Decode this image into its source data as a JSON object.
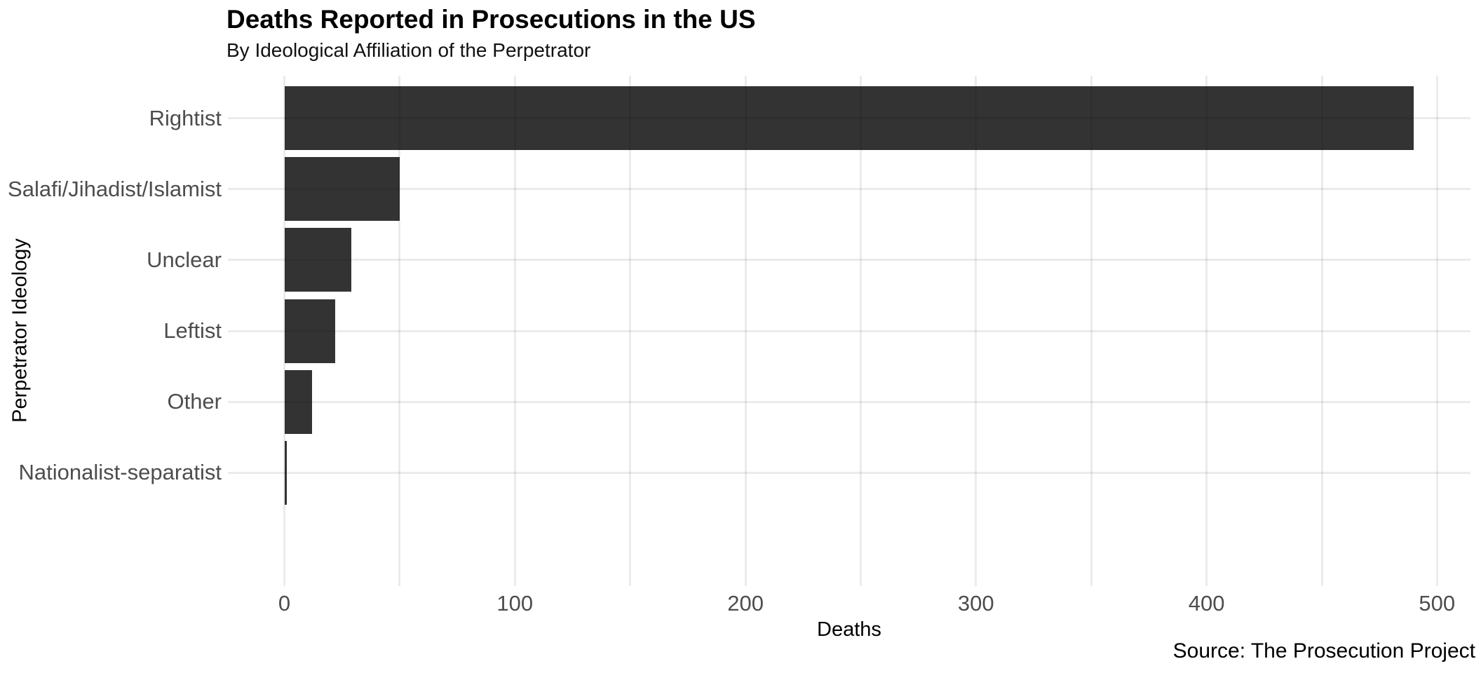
{
  "chart": {
    "title": "Deaths Reported in Prosecutions in the US",
    "subtitle": "By Ideological Affiliation of the Perpetrator",
    "xlabel": "Deaths",
    "ylabel": "Perpetrator Ideology",
    "caption": "Source: The Prosecution Project"
  },
  "chart_data": {
    "type": "bar",
    "orientation": "horizontal",
    "title": "Deaths Reported in Prosecutions in the US",
    "subtitle": "By Ideological Affiliation of the Perpetrator",
    "xlabel": "Deaths",
    "ylabel": "Perpetrator Ideology",
    "caption": "Source: The Prosecution Project",
    "categories": [
      "Rightist",
      "Salafi/Jihadist/Islamist",
      "Unclear",
      "Leftist",
      "Other",
      "Nationalist-separatist"
    ],
    "values": [
      490,
      50,
      29,
      22,
      12,
      1
    ],
    "xticks": [
      0,
      100,
      200,
      300,
      400,
      500
    ],
    "minor_xticks": [
      50,
      150,
      250,
      350,
      450
    ],
    "xlim": [
      -24.5,
      514.5
    ],
    "bar_width_fraction": 0.9,
    "category_expand": 0.6,
    "grid": true,
    "legend": "none",
    "colors": {
      "bar": "#333333",
      "grid": "rgba(0,0,0,0.08)",
      "axis_text": "#4D4D4D",
      "text": "#000000",
      "background": "#FFFFFF"
    }
  }
}
